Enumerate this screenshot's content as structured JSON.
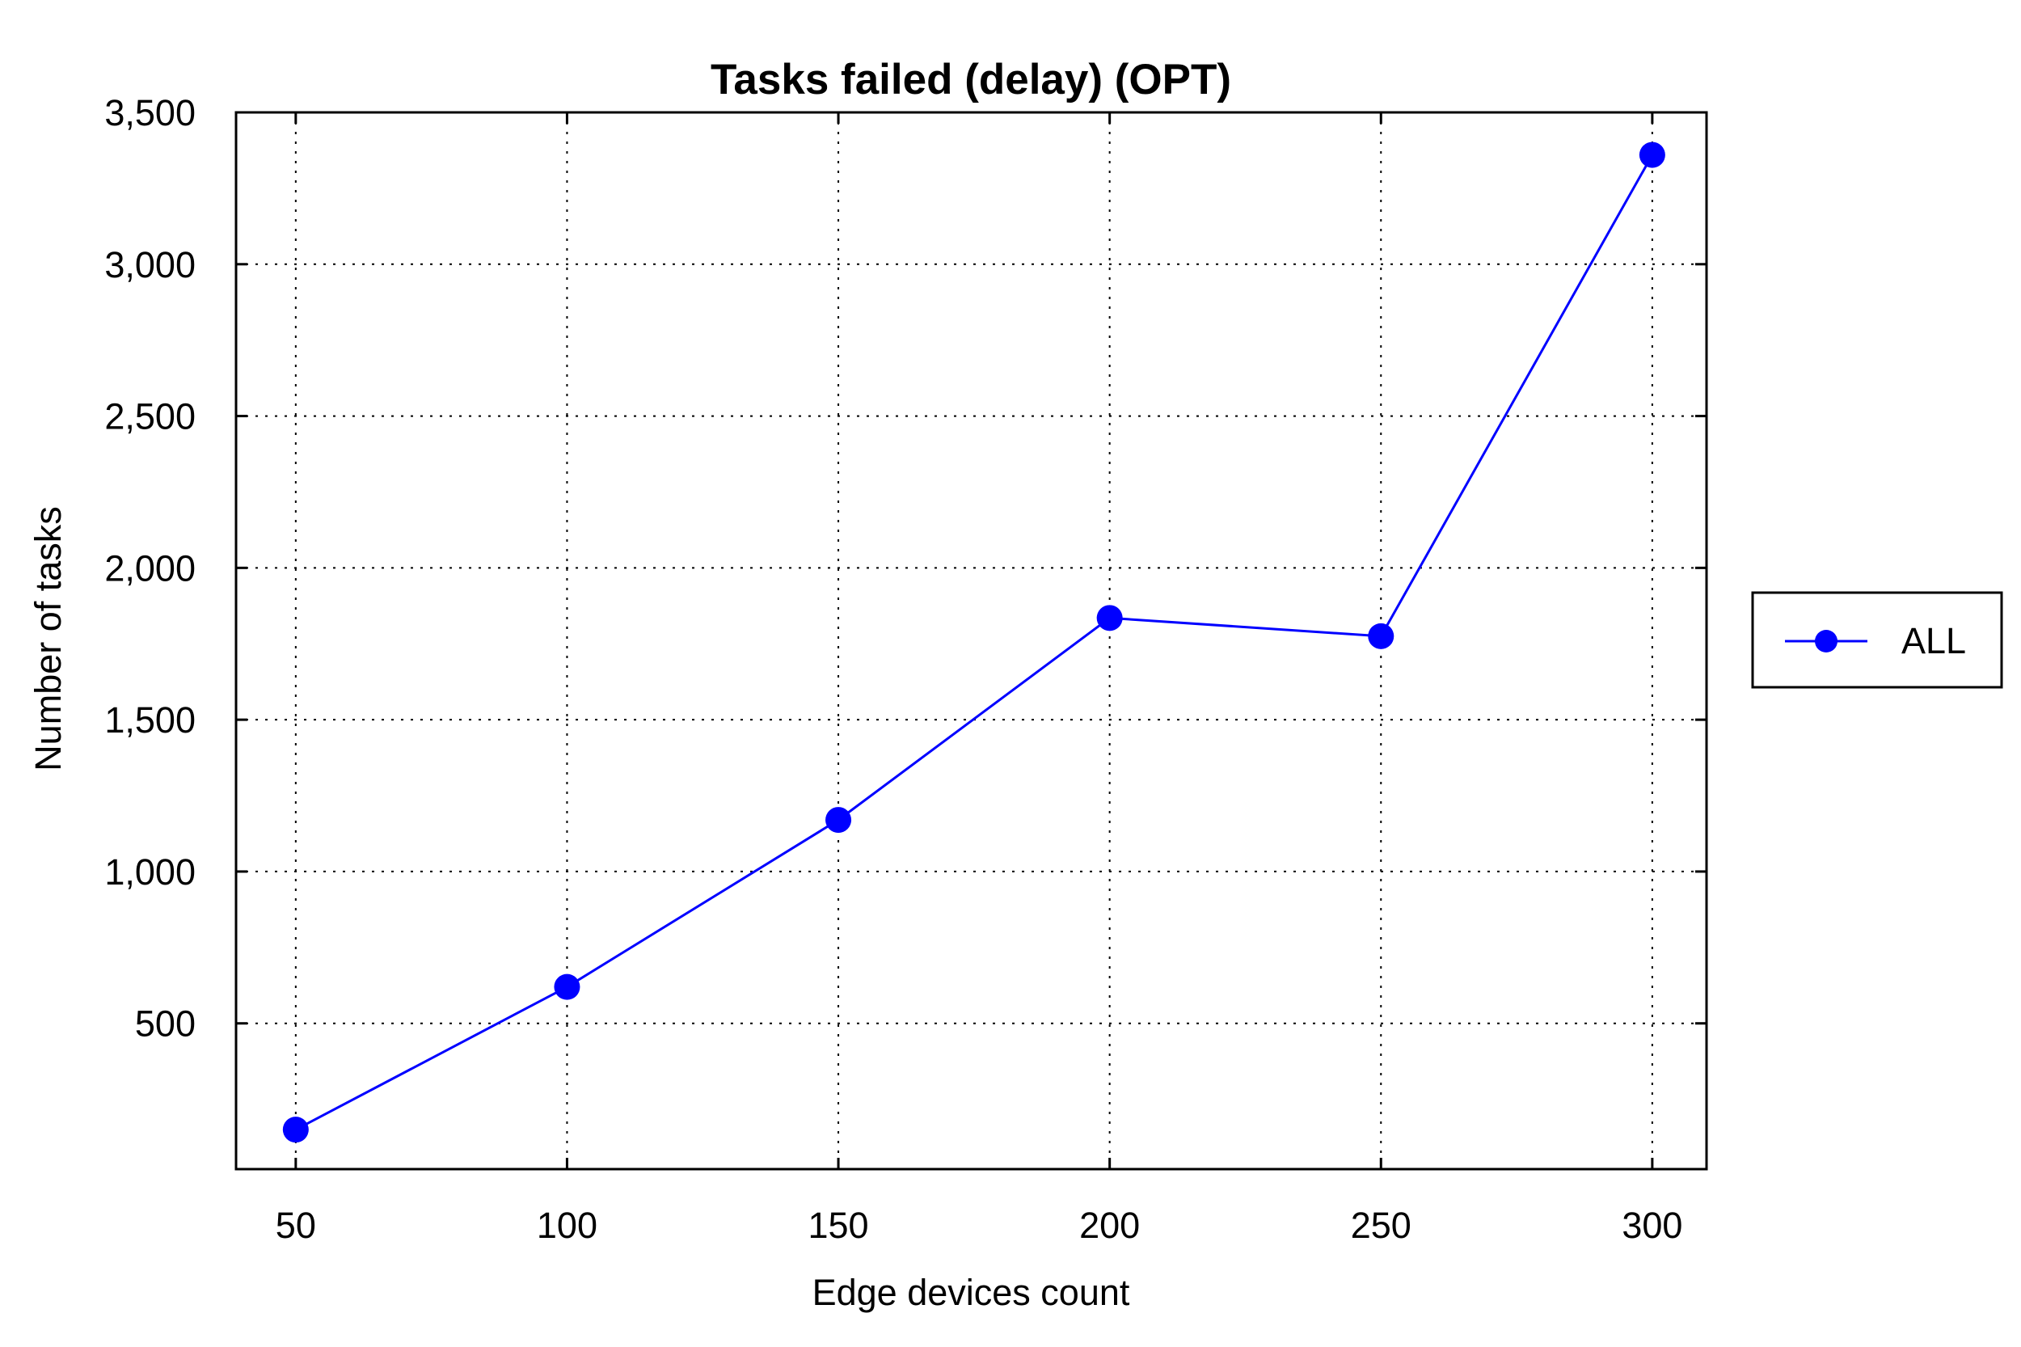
{
  "chart_data": {
    "type": "line",
    "title": "Tasks failed (delay) (OPT)",
    "xlabel": "Edge devices count",
    "ylabel": "Number of tasks",
    "x": [
      50,
      100,
      150,
      200,
      250,
      300
    ],
    "xticks": [
      "50",
      "100",
      "150",
      "200",
      "250",
      "300"
    ],
    "yticks": [
      500,
      1000,
      1500,
      2000,
      2500,
      3000,
      3500
    ],
    "ytick_labels": [
      "500",
      "1,000",
      "1,500",
      "2,000",
      "2,500",
      "3,000",
      "3,500"
    ],
    "xlim": [
      39,
      310
    ],
    "ylim": [
      20,
      3500
    ],
    "grid": true,
    "legend_position": "right",
    "series": [
      {
        "name": "ALL",
        "color": "#0000ff",
        "marker": "circle",
        "values": [
          150,
          620,
          1170,
          1835,
          1775,
          3360
        ]
      }
    ]
  }
}
